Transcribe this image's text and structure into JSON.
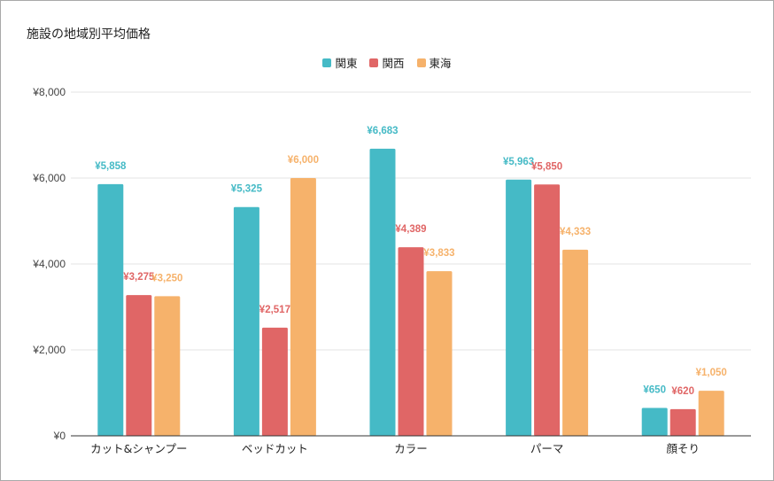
{
  "chart_data": {
    "type": "bar",
    "title": "施設の地域別平均価格",
    "categories": [
      "カット&シャンプー",
      "ベッドカット",
      "カラー",
      "パーマ",
      "顔そり"
    ],
    "series": [
      {
        "name": "関東",
        "color": "#45bac6",
        "values": [
          5858,
          5325,
          6683,
          5963,
          650
        ],
        "labels": [
          "¥5,858",
          "¥5,325",
          "¥6,683",
          "¥5,963",
          "¥650"
        ]
      },
      {
        "name": "関西",
        "color": "#e06666",
        "values": [
          3275,
          2517,
          4389,
          5850,
          620
        ],
        "labels": [
          "¥3,275",
          "¥2,517",
          "¥4,389",
          "¥5,850",
          "¥620"
        ]
      },
      {
        "name": "東海",
        "color": "#f6b26b",
        "values": [
          3250,
          6000,
          3833,
          4333,
          1050
        ],
        "labels": [
          "¥3,250",
          "¥6,000",
          "¥3,833",
          "¥4,333",
          "¥1,050"
        ]
      }
    ],
    "ylim": [
      0,
      8000
    ],
    "yticks": [
      0,
      2000,
      4000,
      6000,
      8000
    ],
    "ytick_labels": [
      "¥0",
      "¥2,000",
      "¥4,000",
      "¥6,000",
      "¥8,000"
    ],
    "xlabel": "",
    "ylabel": "",
    "grid": true,
    "legend_position": "top-center"
  }
}
